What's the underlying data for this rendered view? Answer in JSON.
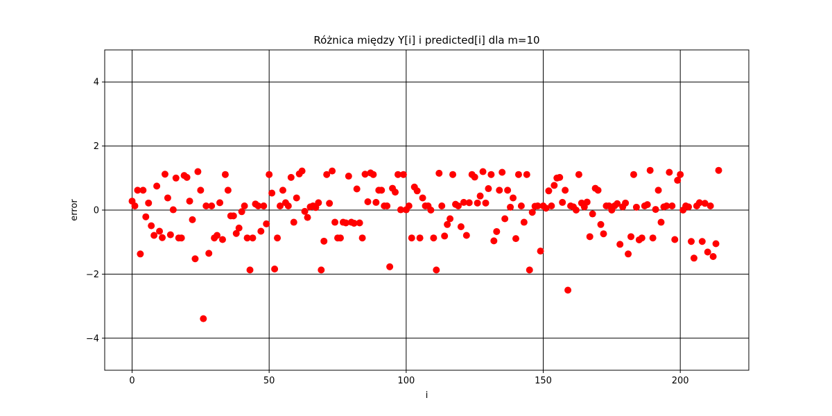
{
  "chart_data": {
    "type": "scatter",
    "title": "Różnica między Y[i] i predicted[i] dla m=10",
    "xlabel": "i",
    "ylabel": "error",
    "xlim": [
      -10,
      225
    ],
    "ylim": [
      -5,
      5
    ],
    "xticks": [
      0,
      50,
      100,
      150,
      200
    ],
    "yticks": [
      -4,
      -2,
      0,
      2,
      4
    ],
    "xtick_labels": [
      "0",
      "50",
      "100",
      "150",
      "200"
    ],
    "ytick_labels": [
      "−4",
      "−2",
      "0",
      "2",
      "4"
    ],
    "grid": true,
    "color": "#ff0000",
    "series": [
      {
        "x": [
          0,
          1,
          2,
          3,
          4,
          5,
          6,
          7,
          8,
          9,
          10,
          11,
          12,
          13,
          14,
          15,
          16,
          17,
          18,
          19,
          20,
          21,
          22,
          23,
          24,
          25,
          26,
          27,
          28,
          29,
          30,
          31,
          32,
          33,
          34,
          35,
          36,
          37,
          38,
          39,
          40,
          41,
          42,
          43,
          44,
          45,
          46,
          47,
          48,
          49,
          50,
          51,
          52,
          53,
          54,
          55,
          56,
          57,
          58,
          59,
          60,
          61,
          62,
          63,
          64,
          65,
          66,
          67,
          68,
          69,
          70,
          71,
          72,
          73,
          74,
          75,
          76,
          77,
          78,
          79,
          80,
          81,
          82,
          83,
          84,
          85,
          86,
          87,
          88,
          89,
          90,
          91,
          92,
          93,
          94,
          95,
          96,
          97,
          98,
          99,
          100,
          101,
          102,
          103,
          104,
          105,
          106,
          107,
          108,
          109,
          110,
          111,
          112,
          113,
          114,
          115,
          116,
          117,
          118,
          119,
          120,
          121,
          122,
          123,
          124,
          125,
          126,
          127,
          128,
          129,
          130,
          131,
          132,
          133,
          134,
          135,
          136,
          137,
          138,
          139,
          140,
          141,
          142,
          143,
          144,
          145,
          146,
          147,
          148,
          149,
          150,
          151,
          152,
          153,
          154,
          155,
          156,
          157,
          158,
          159,
          160,
          161,
          162,
          163,
          164,
          165,
          166,
          167,
          168,
          169,
          170,
          171,
          172,
          173,
          174,
          175,
          176,
          177,
          178,
          179,
          180,
          181,
          182,
          183,
          184,
          185,
          186,
          187,
          188,
          189,
          190,
          191,
          192,
          193,
          194,
          195,
          196,
          197,
          198,
          199,
          200,
          201,
          202,
          203,
          204,
          205,
          206,
          207,
          208,
          209,
          210,
          211,
          212,
          213,
          214
        ],
        "y": [
          0.28,
          0.13,
          0.62,
          -1.37,
          0.62,
          -0.21,
          0.22,
          -0.49,
          -0.79,
          0.75,
          -0.66,
          -0.86,
          1.12,
          0.38,
          -0.77,
          0.01,
          1.0,
          -0.87,
          -0.87,
          1.08,
          1.02,
          0.28,
          -0.3,
          -1.52,
          1.2,
          0.62,
          -3.39,
          0.13,
          -1.35,
          0.13,
          -0.87,
          -0.79,
          0.23,
          -0.92,
          1.11,
          0.62,
          -0.18,
          -0.18,
          -0.73,
          -0.56,
          -0.05,
          0.13,
          -0.87,
          -1.87,
          -0.87,
          0.19,
          0.13,
          -0.66,
          0.13,
          -0.43,
          1.11,
          0.53,
          -1.84,
          -0.87,
          0.13,
          0.62,
          0.23,
          0.13,
          1.02,
          -0.38,
          0.38,
          1.13,
          1.22,
          -0.04,
          -0.23,
          0.1,
          0.13,
          0.08,
          0.23,
          -1.87,
          -0.97,
          1.11,
          0.21,
          1.22,
          -0.38,
          -0.87,
          -0.87,
          -0.38,
          -0.4,
          1.06,
          -0.38,
          -0.41,
          0.66,
          -0.4,
          -0.87,
          1.12,
          0.26,
          1.16,
          1.11,
          0.24,
          0.62,
          0.62,
          0.13,
          0.13,
          -1.77,
          0.68,
          0.56,
          1.11,
          0.01,
          1.11,
          0.01,
          0.13,
          -0.87,
          0.72,
          0.6,
          -0.87,
          0.38,
          0.13,
          0.13,
          0.0,
          -0.87,
          -1.87,
          1.15,
          0.13,
          -0.81,
          -0.45,
          -0.27,
          1.11,
          0.18,
          0.13,
          -0.52,
          0.24,
          -0.79,
          0.23,
          1.11,
          1.03,
          0.22,
          0.44,
          1.2,
          0.22,
          0.67,
          1.11,
          -0.96,
          -0.67,
          0.62,
          1.18,
          -0.27,
          0.62,
          0.09,
          0.38,
          -0.89,
          1.11,
          0.13,
          -0.38,
          1.11,
          -1.87,
          -0.07,
          0.12,
          0.13,
          -1.28,
          0.13,
          0.06,
          0.6,
          0.13,
          0.77,
          1.0,
          1.02,
          0.24,
          0.62,
          -2.5,
          0.13,
          0.1,
          0.0,
          1.11,
          0.22,
          0.1,
          0.25,
          -0.83,
          -0.12,
          0.68,
          0.62,
          -0.45,
          -0.74,
          0.13,
          0.13,
          0.0,
          0.13,
          0.2,
          -1.07,
          0.1,
          0.22,
          -1.37,
          -0.83,
          1.11,
          0.09,
          -0.93,
          -0.87,
          0.13,
          0.17,
          1.24,
          -0.87,
          0.02,
          0.62,
          -0.38,
          0.1,
          0.13,
          1.18,
          0.13,
          -0.92,
          0.93,
          1.11,
          0.0,
          0.13,
          0.1,
          -0.98,
          -1.5,
          0.13,
          0.23,
          -0.98,
          0.21,
          -1.31,
          0.13,
          -1.45,
          -1.05,
          1.24
        ]
      }
    ]
  }
}
